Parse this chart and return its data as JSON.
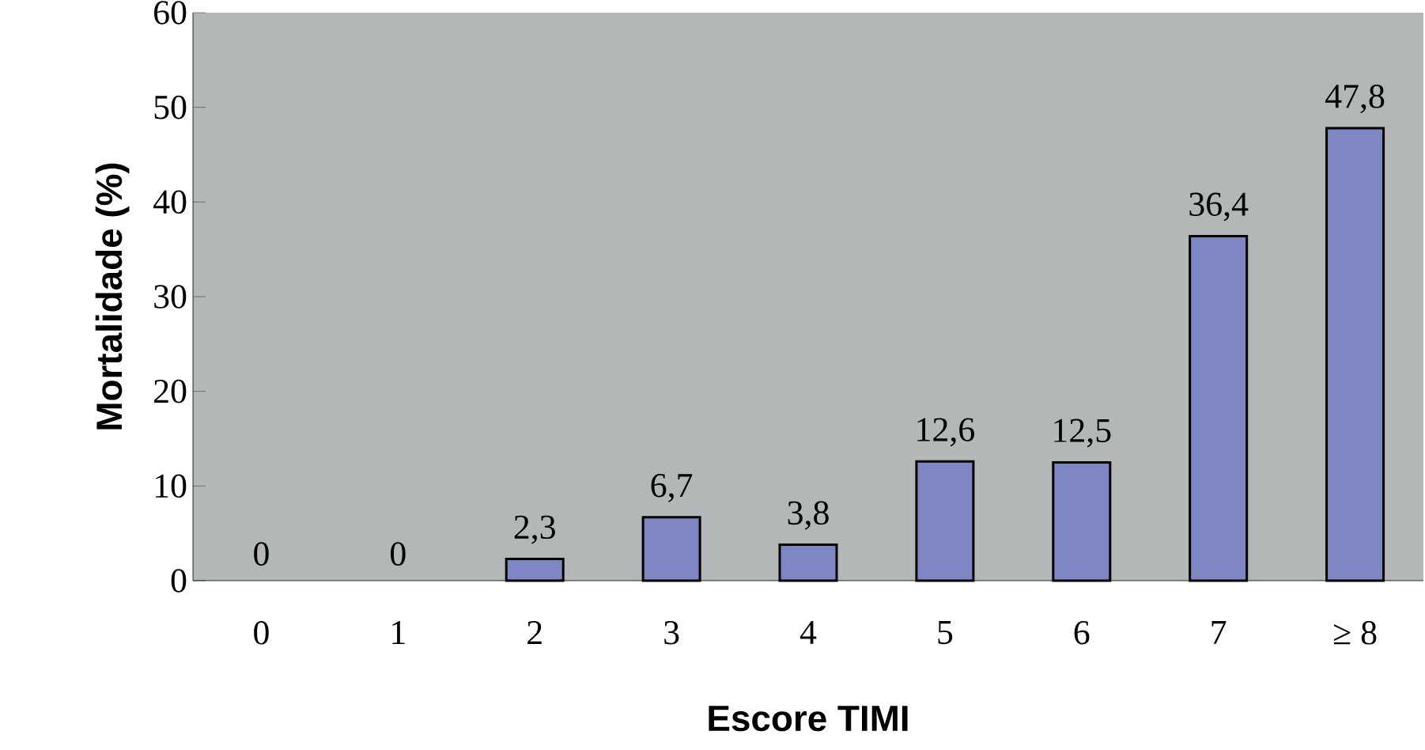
{
  "chart_data": {
    "type": "bar",
    "xlabel": "Escore TIMI",
    "ylabel": "Mortalidade (%)",
    "categories": [
      "0",
      "1",
      "2",
      "3",
      "4",
      "5",
      "6",
      "7",
      "≥ 8"
    ],
    "values": [
      0,
      0,
      2.3,
      6.7,
      3.8,
      12.6,
      12.5,
      36.4,
      47.8
    ],
    "value_labels": [
      "0",
      "0",
      "2,3",
      "6,7",
      "3,8",
      "12,6",
      "12,5",
      "36,4",
      "47,8"
    ],
    "color": "#7f86c4",
    "ylim": [
      0,
      60
    ],
    "yticks": [
      0,
      10,
      20,
      30,
      40,
      50,
      60
    ]
  }
}
